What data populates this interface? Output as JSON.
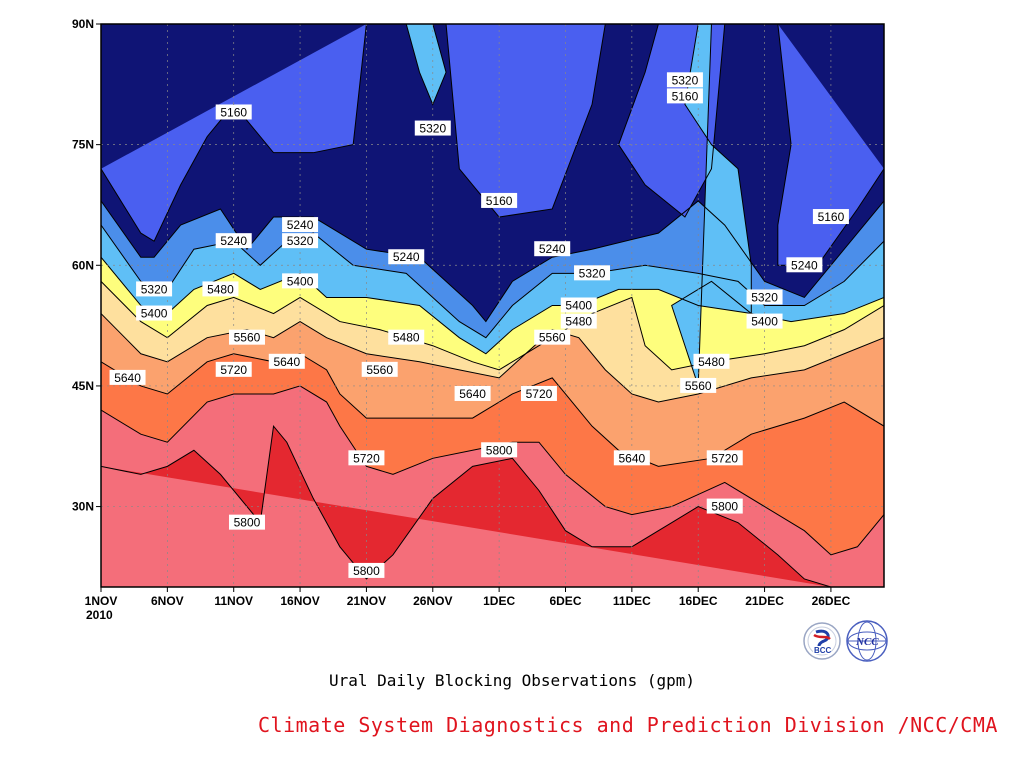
{
  "chart_data": {
    "type": "contour",
    "title": "Ural Daily Blocking Observations (gpm)",
    "source_credit": "Climate System Diagnostics and Prediction Division /NCC/CMA",
    "x_axis": {
      "ticks": [
        "1NOV",
        "6NOV",
        "11NOV",
        "16NOV",
        "21NOV",
        "26NOV",
        "1DEC",
        "6DEC",
        "11DEC",
        "16DEC",
        "21DEC",
        "26DEC"
      ],
      "year_label": "2010",
      "range_days": [
        0,
        59
      ]
    },
    "y_axis": {
      "ticks": [
        "30N",
        "45N",
        "60N",
        "75N",
        "90N"
      ],
      "tick_values": [
        30,
        45,
        60,
        75,
        90
      ],
      "range": [
        20,
        90
      ]
    },
    "grid": true,
    "contour_levels": [
      5160,
      5240,
      5320,
      5400,
      5480,
      5560,
      5640,
      5720,
      5800
    ],
    "fill_colors": [
      "#0f1475",
      "#1e2ee6",
      "#4a5ff0",
      "#4b8eea",
      "#5fbff6",
      "#fefe7d",
      "#fee09e",
      "#fba26e",
      "#fd7747",
      "#f46e7a",
      "#e42830"
    ],
    "contour_lines": [
      {
        "level": 5160,
        "points": [
          [
            0,
            72
          ],
          [
            3,
            64
          ],
          [
            4,
            63
          ],
          [
            6,
            70
          ],
          [
            8,
            76
          ],
          [
            10,
            80
          ],
          [
            13,
            74
          ],
          [
            16,
            74
          ],
          [
            19,
            75
          ],
          [
            20,
            90
          ]
        ],
        "labels": [
          [
            10,
            79
          ]
        ]
      },
      {
        "level": 5160,
        "points": [
          [
            26,
            90
          ],
          [
            27,
            72
          ],
          [
            30,
            66
          ],
          [
            34,
            67
          ],
          [
            37,
            80
          ],
          [
            38,
            90
          ]
        ],
        "labels": [
          [
            30,
            68
          ]
        ]
      },
      {
        "level": 5160,
        "points": [
          [
            42,
            90
          ],
          [
            41,
            84
          ],
          [
            39,
            75
          ],
          [
            41,
            70
          ],
          [
            44,
            66
          ],
          [
            46,
            72
          ],
          [
            47,
            90
          ]
        ],
        "labels": [
          [
            44,
            81
          ]
        ]
      },
      {
        "level": 5160,
        "points": [
          [
            51,
            90
          ],
          [
            52,
            75
          ],
          [
            51,
            65
          ],
          [
            51,
            60
          ],
          [
            54,
            60
          ],
          [
            57,
            67
          ],
          [
            59,
            72
          ]
        ],
        "labels": [
          [
            55,
            66
          ]
        ]
      },
      {
        "level": 5240,
        "points": [
          [
            0,
            68
          ],
          [
            3,
            61
          ],
          [
            4,
            61
          ],
          [
            6,
            65
          ],
          [
            9,
            67
          ],
          [
            11,
            62
          ],
          [
            13,
            66
          ],
          [
            16,
            66
          ],
          [
            20,
            62
          ],
          [
            24,
            61
          ],
          [
            28,
            55
          ],
          [
            29,
            53
          ],
          [
            31,
            58
          ],
          [
            34,
            61
          ],
          [
            37,
            62
          ],
          [
            42,
            64
          ],
          [
            45,
            68
          ],
          [
            47,
            65
          ],
          [
            50,
            58
          ],
          [
            53,
            56
          ],
          [
            56,
            62
          ],
          [
            59,
            68
          ]
        ],
        "labels": [
          [
            10,
            63
          ],
          [
            15,
            65
          ],
          [
            23,
            61
          ],
          [
            34,
            62
          ],
          [
            53,
            60
          ]
        ]
      },
      {
        "level": 5320,
        "points": [
          [
            0,
            65
          ],
          [
            3,
            58
          ],
          [
            5,
            57
          ],
          [
            7,
            62
          ],
          [
            10,
            63
          ],
          [
            12,
            60
          ],
          [
            14,
            63
          ],
          [
            16,
            64
          ],
          [
            19,
            60
          ],
          [
            23,
            59
          ],
          [
            27,
            53
          ],
          [
            29,
            51
          ],
          [
            31,
            55
          ],
          [
            34,
            59
          ],
          [
            37,
            59
          ],
          [
            41,
            60
          ],
          [
            45,
            59
          ],
          [
            48,
            58
          ],
          [
            50,
            55
          ],
          [
            53,
            55
          ],
          [
            56,
            58
          ],
          [
            59,
            63
          ]
        ],
        "labels": [
          [
            4,
            57
          ],
          [
            15,
            63
          ],
          [
            37,
            59
          ],
          [
            50,
            56
          ]
        ]
      },
      {
        "level": 5320,
        "points": [
          [
            23,
            90
          ],
          [
            24,
            84
          ],
          [
            25,
            80
          ],
          [
            26,
            84
          ],
          [
            25,
            90
          ]
        ],
        "labels": [
          [
            25,
            77
          ]
        ]
      },
      {
        "level": 5320,
        "points": [
          [
            45,
            90
          ],
          [
            44,
            80
          ],
          [
            46,
            75
          ],
          [
            48,
            72
          ],
          [
            49,
            60
          ],
          [
            49,
            54
          ],
          [
            46,
            58
          ],
          [
            43,
            55
          ],
          [
            45,
            45
          ],
          [
            46,
            90
          ]
        ],
        "labels": [
          [
            44,
            83
          ]
        ]
      },
      {
        "level": 5400,
        "points": [
          [
            0,
            61
          ],
          [
            3,
            55
          ],
          [
            5,
            54
          ],
          [
            7,
            57
          ],
          [
            10,
            59
          ],
          [
            12,
            57
          ],
          [
            15,
            59
          ],
          [
            17,
            56
          ],
          [
            20,
            56
          ],
          [
            24,
            55
          ],
          [
            27,
            51
          ],
          [
            29,
            49
          ],
          [
            31,
            52
          ],
          [
            34,
            55
          ],
          [
            36,
            55
          ],
          [
            39,
            57
          ],
          [
            42,
            57
          ],
          [
            45,
            55
          ],
          [
            49,
            54
          ],
          [
            52,
            53
          ],
          [
            56,
            54
          ],
          [
            59,
            56
          ]
        ],
        "labels": [
          [
            4,
            54
          ],
          [
            15,
            58
          ],
          [
            36,
            55
          ],
          [
            50,
            53
          ]
        ]
      },
      {
        "level": 5480,
        "points": [
          [
            0,
            58
          ],
          [
            3,
            53
          ],
          [
            5,
            51
          ],
          [
            8,
            55
          ],
          [
            10,
            56
          ],
          [
            13,
            54
          ],
          [
            15,
            56
          ],
          [
            18,
            53
          ],
          [
            21,
            52
          ],
          [
            25,
            50
          ],
          [
            28,
            48
          ],
          [
            30,
            47
          ],
          [
            33,
            50
          ],
          [
            35,
            52
          ],
          [
            37,
            54
          ],
          [
            40,
            56
          ],
          [
            41,
            50
          ],
          [
            43,
            47
          ],
          [
            46,
            48
          ],
          [
            50,
            49
          ],
          [
            53,
            50
          ],
          [
            56,
            52
          ],
          [
            59,
            55
          ]
        ],
        "labels": [
          [
            9,
            57
          ],
          [
            23,
            51
          ],
          [
            36,
            53
          ],
          [
            46,
            48
          ]
        ]
      },
      {
        "level": 5560,
        "points": [
          [
            0,
            54
          ],
          [
            3,
            49
          ],
          [
            5,
            48
          ],
          [
            8,
            51
          ],
          [
            11,
            52
          ],
          [
            13,
            51
          ],
          [
            15,
            53
          ],
          [
            17,
            51
          ],
          [
            20,
            49
          ],
          [
            24,
            48
          ],
          [
            27,
            47
          ],
          [
            30,
            46
          ],
          [
            32,
            49
          ],
          [
            34,
            52
          ],
          [
            36,
            51
          ],
          [
            38,
            47
          ],
          [
            40,
            44
          ],
          [
            42,
            43
          ],
          [
            45,
            44
          ],
          [
            49,
            46
          ],
          [
            53,
            47
          ],
          [
            56,
            49
          ],
          [
            59,
            51
          ]
        ],
        "labels": [
          [
            11,
            51
          ],
          [
            21,
            47
          ],
          [
            34,
            51
          ],
          [
            45,
            45
          ]
        ]
      },
      {
        "level": 5640,
        "points": [
          [
            0,
            48
          ],
          [
            3,
            45
          ],
          [
            5,
            44
          ],
          [
            8,
            48
          ],
          [
            10,
            49
          ],
          [
            13,
            48
          ],
          [
            15,
            49
          ],
          [
            17,
            47
          ],
          [
            18,
            44
          ],
          [
            20,
            41
          ],
          [
            22,
            41
          ],
          [
            25,
            41
          ],
          [
            28,
            41
          ],
          [
            31,
            44
          ],
          [
            34,
            46
          ],
          [
            35,
            44
          ],
          [
            37,
            40
          ],
          [
            39,
            37
          ],
          [
            42,
            35
          ],
          [
            46,
            36
          ],
          [
            49,
            39
          ],
          [
            53,
            41
          ],
          [
            56,
            43
          ],
          [
            59,
            40
          ]
        ],
        "labels": [
          [
            2,
            46
          ],
          [
            14,
            48
          ],
          [
            28,
            44
          ],
          [
            40,
            36
          ]
        ]
      },
      {
        "level": 5720,
        "points": [
          [
            0,
            42
          ],
          [
            3,
            39
          ],
          [
            5,
            38
          ],
          [
            8,
            43
          ],
          [
            10,
            44
          ],
          [
            13,
            44
          ],
          [
            15,
            45
          ],
          [
            17,
            43
          ],
          [
            18,
            40
          ],
          [
            20,
            35
          ],
          [
            22,
            34
          ],
          [
            25,
            36
          ],
          [
            28,
            37
          ],
          [
            31,
            38
          ],
          [
            33,
            38
          ],
          [
            35,
            34
          ],
          [
            38,
            30
          ],
          [
            40,
            29
          ],
          [
            43,
            30
          ],
          [
            47,
            33
          ],
          [
            50,
            30
          ],
          [
            53,
            27
          ],
          [
            55,
            24
          ],
          [
            57,
            25
          ],
          [
            59,
            29
          ]
        ],
        "labels": [
          [
            10,
            47
          ],
          [
            20,
            36
          ],
          [
            33,
            44
          ],
          [
            47,
            36
          ]
        ]
      },
      {
        "level": 5800,
        "points": [
          [
            0,
            35
          ],
          [
            3,
            34
          ],
          [
            5,
            35
          ],
          [
            7,
            37
          ],
          [
            9,
            34
          ],
          [
            11,
            30
          ],
          [
            12,
            28
          ],
          [
            13,
            40
          ],
          [
            14,
            38
          ],
          [
            16,
            31
          ],
          [
            18,
            25
          ],
          [
            20,
            21
          ],
          [
            22,
            24
          ],
          [
            25,
            31
          ],
          [
            28,
            35
          ],
          [
            31,
            36
          ],
          [
            33,
            32
          ],
          [
            35,
            27
          ],
          [
            37,
            25
          ],
          [
            40,
            25
          ],
          [
            43,
            28
          ],
          [
            45,
            30
          ],
          [
            48,
            28
          ],
          [
            51,
            24
          ],
          [
            53,
            21
          ],
          [
            55,
            20
          ]
        ],
        "labels": [
          [
            11,
            28
          ],
          [
            20,
            22
          ],
          [
            30,
            37
          ],
          [
            47,
            30
          ]
        ]
      }
    ]
  }
}
